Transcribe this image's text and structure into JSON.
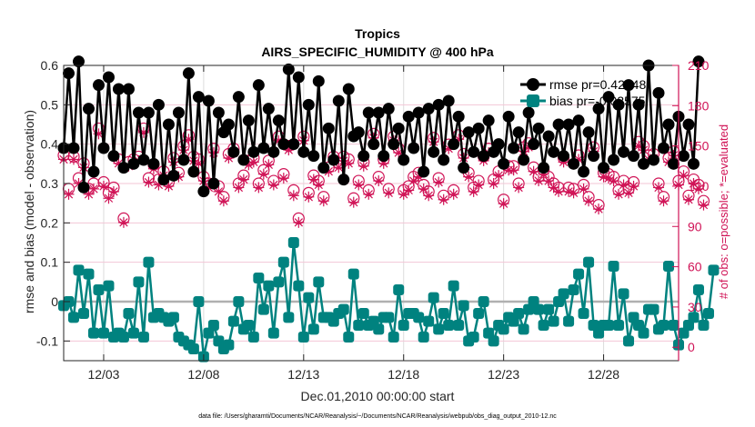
{
  "chart_data": {
    "type": "line",
    "title": "Tropics",
    "subtitle": "AIRS_SPECIFIC_HUMIDITY @ 400 hPa",
    "xlabel": "Dec.01,2010 00:00:00 start",
    "ylabel": "rmse and bias (model - observation)",
    "y2label": "# of obs: o=possible; *=evaluated",
    "footnote": "data file: /Users/gharamti/Documents/NCAR/Reanalysis/~/Documents/NCAR/Reanalysis/webpub/obs_diag_output_2010-12.nc",
    "x_range_days": [
      1.0,
      31.75
    ],
    "x_ticks": [
      3,
      8,
      13,
      18,
      23,
      28
    ],
    "x_tick_labels": [
      "12/03",
      "12/08",
      "12/13",
      "12/18",
      "12/23",
      "12/28"
    ],
    "ylim": [
      -0.15,
      0.6
    ],
    "y_ticks": [
      -0.1,
      0,
      0.1,
      0.2,
      0.3,
      0.4,
      0.5,
      0.6
    ],
    "y_tick_labels": [
      "-0.1",
      "0",
      "0.1",
      "0.2",
      "0.3",
      "0.4",
      "0.5",
      "0.6"
    ],
    "y2lim": [
      -10,
      210
    ],
    "y2_ticks": [
      0,
      30,
      60,
      90,
      120,
      150,
      180,
      210
    ],
    "y2_tick_labels": [
      "0",
      "30",
      "60",
      "90",
      "120",
      "150",
      "180",
      "210"
    ],
    "grid": true,
    "legend_position": "top-right",
    "time_step_days": 0.25,
    "series": [
      {
        "name": "rmse",
        "legend_label": "rmse pr=0.42348",
        "color": "#000000",
        "marker": "circle",
        "axis": "left",
        "values": [
          0.39,
          0.58,
          0.39,
          0.61,
          0.29,
          0.49,
          0.33,
          0.55,
          0.39,
          0.57,
          0.37,
          0.54,
          0.34,
          0.54,
          0.35,
          0.48,
          0.36,
          0.48,
          0.35,
          0.5,
          0.31,
          0.45,
          0.32,
          0.48,
          0.36,
          0.58,
          0.33,
          0.52,
          0.28,
          0.51,
          0.3,
          0.48,
          0.43,
          0.45,
          0.38,
          0.52,
          0.36,
          0.46,
          0.38,
          0.55,
          0.39,
          0.49,
          0.38,
          0.46,
          0.4,
          0.59,
          0.4,
          0.57,
          0.38,
          0.5,
          0.37,
          0.56,
          0.34,
          0.44,
          0.36,
          0.51,
          0.31,
          0.54,
          0.42,
          0.43,
          0.37,
          0.48,
          0.4,
          0.48,
          0.37,
          0.49,
          0.4,
          0.44,
          0.36,
          0.47,
          0.39,
          0.48,
          0.33,
          0.49,
          0.38,
          0.5,
          0.36,
          0.51,
          0.4,
          0.47,
          0.34,
          0.43,
          0.38,
          0.44,
          0.37,
          0.46,
          0.38,
          0.4,
          0.35,
          0.47,
          0.39,
          0.43,
          0.36,
          0.48,
          0.4,
          0.44,
          0.34,
          0.42,
          0.38,
          0.45,
          0.37,
          0.45,
          0.35,
          0.46,
          0.33,
          0.43,
          0.37,
          0.49,
          0.34,
          0.52,
          0.36,
          0.5,
          0.38,
          0.55,
          0.37,
          0.5,
          0.35,
          0.6,
          0.36,
          0.53,
          0.39,
          0.45,
          0.35,
          0.47,
          0.37,
          0.45,
          0.35,
          0.61
        ]
      },
      {
        "name": "bias",
        "legend_label": "bias pr=-0.03575",
        "color": "#00827f",
        "marker": "square",
        "axis": "left",
        "values": [
          -0.01,
          0.0,
          -0.04,
          0.08,
          -0.03,
          0.07,
          -0.08,
          0.03,
          -0.08,
          0.04,
          -0.09,
          -0.08,
          -0.09,
          -0.03,
          -0.08,
          0.05,
          -0.09,
          0.1,
          -0.04,
          -0.03,
          -0.04,
          -0.05,
          -0.04,
          -0.09,
          -0.1,
          -0.11,
          -0.12,
          0.0,
          -0.14,
          -0.08,
          -0.06,
          -0.1,
          -0.12,
          -0.11,
          -0.05,
          0.0,
          -0.07,
          -0.06,
          -0.09,
          0.06,
          -0.02,
          0.04,
          -0.08,
          0.05,
          0.1,
          -0.04,
          0.15,
          0.04,
          -0.09,
          0.01,
          -0.07,
          0.05,
          -0.04,
          -0.04,
          -0.05,
          -0.03,
          -0.02,
          -0.09,
          0.07,
          -0.06,
          -0.03,
          -0.06,
          -0.05,
          -0.07,
          -0.04,
          -0.04,
          -0.09,
          0.03,
          -0.06,
          -0.03,
          -0.03,
          -0.04,
          -0.09,
          -0.05,
          0.01,
          -0.07,
          -0.03,
          -0.06,
          0.04,
          -0.06,
          -0.01,
          -0.1,
          -0.09,
          -0.03,
          0.0,
          -0.08,
          -0.1,
          -0.06,
          -0.07,
          -0.04,
          -0.05,
          -0.03,
          -0.07,
          -0.02,
          0.0,
          -0.02,
          -0.06,
          -0.02,
          -0.05,
          0.0,
          0.02,
          -0.05,
          0.03,
          0.07,
          -0.03,
          0.1,
          -0.06,
          -0.08,
          -0.06,
          -0.06,
          0.09,
          -0.06,
          0.02,
          -0.1,
          -0.04,
          -0.06,
          -0.08,
          -0.02,
          -0.02,
          -0.07,
          -0.06,
          0.09,
          -0.06,
          -0.11,
          -0.08,
          -0.06,
          -0.04,
          0.03,
          -0.06,
          -0.03,
          0.08
        ]
      },
      {
        "name": "obs possible",
        "color": "#d01356",
        "marker": "open-circle",
        "axis": "right",
        "values": [
          143,
          118,
          142,
          126,
          137,
          118,
          122,
          163,
          123,
          115,
          119,
          140,
          96,
          138,
          140,
          142,
          163,
          126,
          136,
          125,
          131,
          123,
          141,
          130,
          150,
          158,
          142,
          140,
          127,
          122,
          148,
          120,
          112,
          144,
          148,
          122,
          128,
          139,
          141,
          122,
          132,
          139,
          124,
          157,
          129,
          150,
          117,
          96,
          157,
          115,
          128,
          124,
          112,
          134,
          142,
          137,
          142,
          140,
          111,
          124,
          138,
          117,
          159,
          127,
          140,
          118,
          157,
          148,
          117,
          120,
          127,
          130,
          121,
          116,
          156,
          126,
          113,
          151,
          117,
          158,
          144,
          130,
          119,
          124,
          142,
          148,
          125,
          131,
          110,
          135,
          135,
          122,
          149,
          152,
          134,
          127,
          132,
          127,
          122,
          119,
          141,
          119,
          118,
          143,
          121,
          112,
          149,
          106,
          130,
          129,
          127,
          117,
          124,
          118,
          123,
          153,
          150,
          143,
          144,
          122,
          112,
          141,
          146,
          124,
          131,
          113,
          125,
          121,
          109
        ]
      },
      {
        "name": "obs evaluated",
        "color": "#d01356",
        "marker": "asterisk",
        "axis": "right",
        "values": [
          140,
          114,
          140,
          122,
          134,
          114,
          118,
          159,
          120,
          111,
          116,
          137,
          93,
          135,
          137,
          139,
          160,
          123,
          133,
          121,
          128,
          120,
          138,
          127,
          147,
          155,
          139,
          137,
          124,
          119,
          145,
          116,
          109,
          141,
          145,
          119,
          125,
          136,
          138,
          119,
          129,
          136,
          121,
          154,
          126,
          147,
          113,
          93,
          154,
          112,
          125,
          121,
          109,
          131,
          139,
          134,
          139,
          137,
          108,
          121,
          135,
          114,
          156,
          124,
          137,
          115,
          154,
          145,
          114,
          117,
          124,
          127,
          118,
          113,
          153,
          123,
          110,
          148,
          114,
          155,
          141,
          127,
          116,
          121,
          139,
          145,
          122,
          128,
          107,
          132,
          132,
          119,
          146,
          149,
          131,
          124,
          129,
          124,
          119,
          116,
          138,
          116,
          115,
          140,
          118,
          109,
          146,
          103,
          127,
          126,
          124,
          114,
          121,
          115,
          120,
          150,
          147,
          140,
          141,
          119,
          109,
          138,
          143,
          121,
          128,
          110,
          122,
          118,
          106
        ]
      }
    ]
  }
}
